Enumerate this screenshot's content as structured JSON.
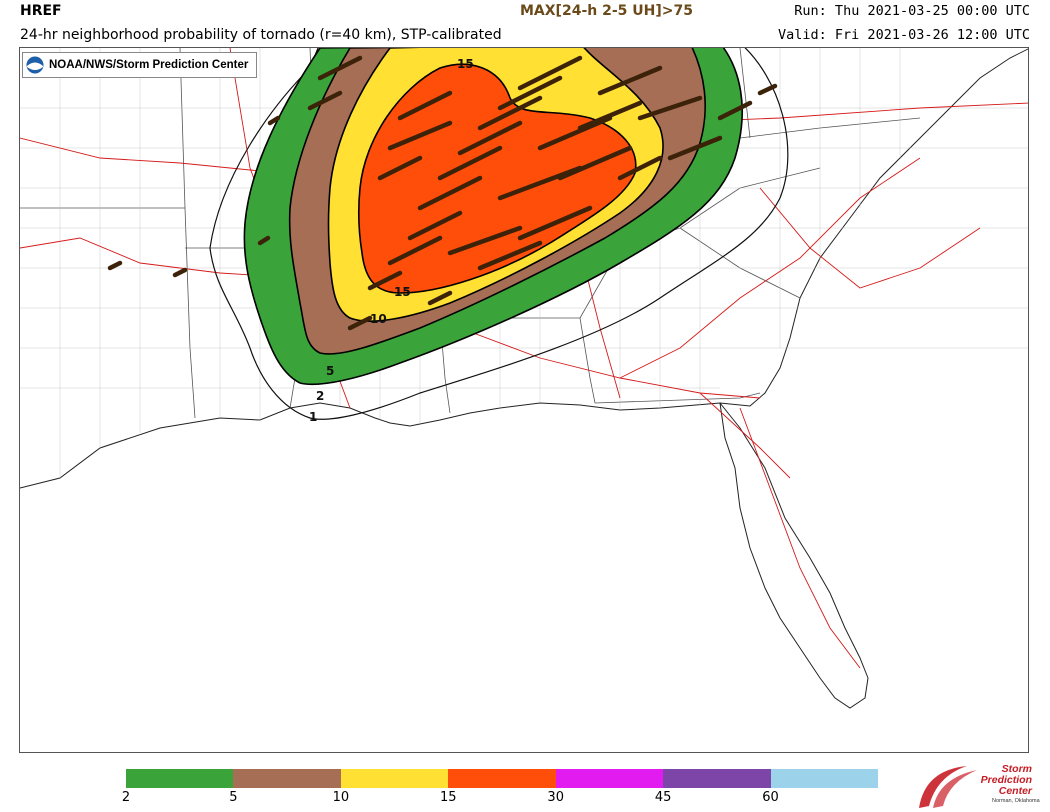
{
  "header": {
    "model": "HREF",
    "field": "MAX[24-h 2-5 UH]>75",
    "product": "24-hr neighborhood probability of tornado (r=40 km), STP-calibrated",
    "run": "Run: Thu 2021-03-25 00:00 UTC",
    "valid": "Valid: Fri 2021-03-26 12:00 UTC"
  },
  "credit": {
    "text": "NOAA/NWS/Storm Prediction Center",
    "icon": "noaa-logo-icon"
  },
  "contour_labels": [
    "1",
    "2",
    "5",
    "10",
    "15",
    "15"
  ],
  "legend": {
    "colors": [
      "#3aa43a",
      "#a56e55",
      "#ffe033",
      "#ff4d0a",
      "#e21cf0",
      "#7e45a8",
      "#9dd3ea"
    ],
    "labels": [
      "2",
      "5",
      "10",
      "15",
      "30",
      "45",
      "60"
    ]
  },
  "logo": {
    "line1": "Storm",
    "line2": "Prediction",
    "line3": "Center",
    "line4": "Norman, Oklahoma"
  }
}
